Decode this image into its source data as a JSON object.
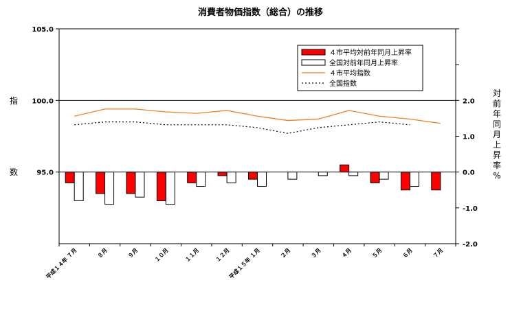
{
  "chart_data": {
    "type": "bar",
    "title": "消費者物価指数（総合）の推移",
    "categories": [
      "平成１４年 ７月",
      "８月",
      "９月",
      "１０月",
      "１１月",
      "１２月",
      "平成１５年 １月",
      "２月",
      "３月",
      "４月",
      "５月",
      "６月",
      "７月"
    ],
    "y_left": {
      "label_top": "指",
      "label_bottom": "数",
      "ticks": [
        "105.0",
        "100.0",
        "95.0"
      ],
      "range": [
        90,
        105
      ]
    },
    "y_right": {
      "label": [
        "対",
        "前",
        "年",
        "同",
        "月",
        "上",
        "昇",
        "率",
        "%"
      ],
      "ticks": [
        "2.0",
        "1.0",
        "0.0",
        "-1.0",
        "-2.0"
      ],
      "range": [
        -2,
        4
      ]
    },
    "series": [
      {
        "name": "４市平均対前年同月上昇率",
        "kind": "bar",
        "axis": "right",
        "color": "#ff0000",
        "values": [
          -0.3,
          -0.6,
          -0.6,
          -0.8,
          -0.3,
          -0.1,
          -0.2,
          null,
          null,
          0.2,
          -0.3,
          -0.5,
          -0.5
        ]
      },
      {
        "name": "全国対前年同月上昇率",
        "kind": "bar",
        "axis": "right",
        "color": "#ffffff",
        "values": [
          -0.8,
          -0.9,
          -0.7,
          -0.9,
          -0.4,
          -0.3,
          -0.4,
          -0.2,
          -0.1,
          -0.1,
          -0.2,
          -0.4,
          null
        ]
      },
      {
        "name": "４市平均指数",
        "kind": "line",
        "axis": "left",
        "color": "#f08020",
        "values": [
          98.9,
          99.4,
          99.4,
          99.2,
          99.1,
          99.3,
          98.9,
          98.6,
          98.7,
          99.3,
          98.9,
          98.7,
          98.4
        ]
      },
      {
        "name": "全国指数",
        "kind": "line",
        "axis": "left",
        "color": "#000000",
        "values": [
          98.3,
          98.5,
          98.5,
          98.3,
          98.3,
          98.3,
          98.1,
          97.7,
          98.1,
          98.3,
          98.5,
          98.3,
          null
        ]
      }
    ]
  }
}
